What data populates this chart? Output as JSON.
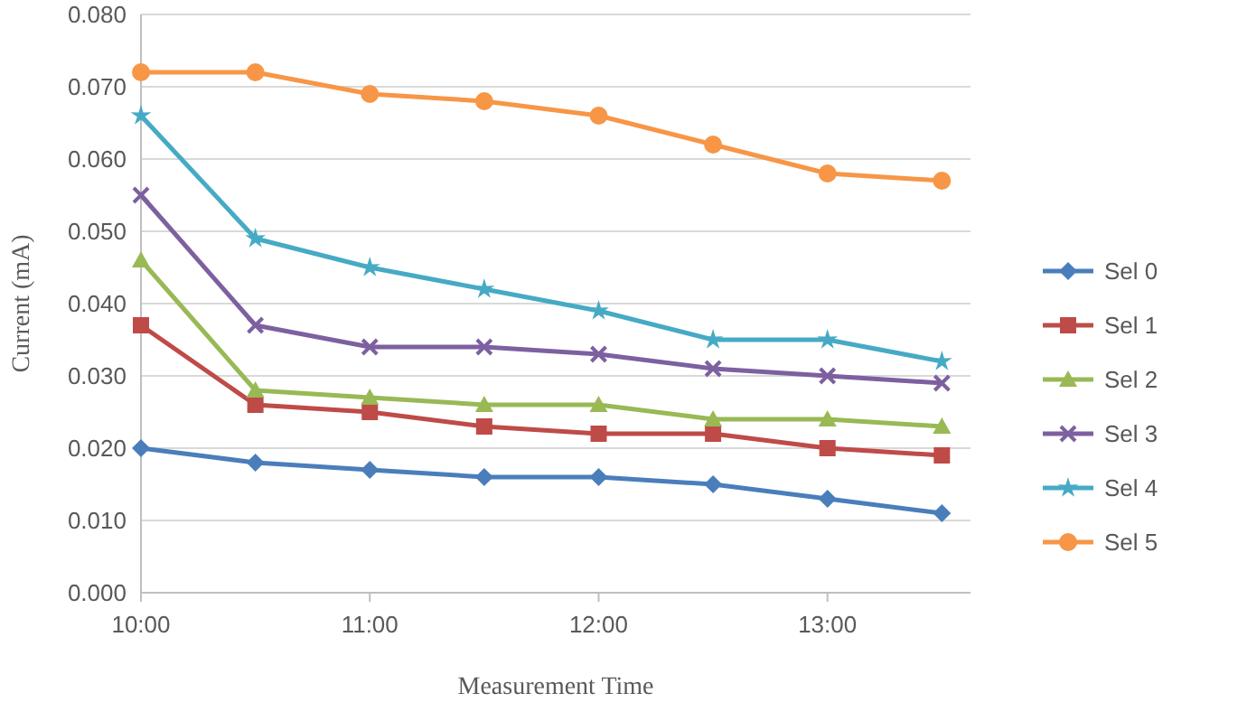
{
  "chart_data": {
    "type": "line",
    "xlabel": "Measurement Time",
    "ylabel": "Current (mA)",
    "x": [
      10,
      10.5,
      11,
      11.5,
      12,
      12.5,
      13,
      13.5
    ],
    "xlim": [
      10,
      13.625
    ],
    "xticks": [
      {
        "value": 10,
        "label": "10:00"
      },
      {
        "value": 11,
        "label": "11:00"
      },
      {
        "value": 12,
        "label": "12:00"
      },
      {
        "value": 13,
        "label": "13:00"
      }
    ],
    "ylim": [
      0,
      0.08
    ],
    "yticks": [
      {
        "value": 0,
        "label": "0.000"
      },
      {
        "value": 0.01,
        "label": "0.010"
      },
      {
        "value": 0.02,
        "label": "0.020"
      },
      {
        "value": 0.03,
        "label": "0.030"
      },
      {
        "value": 0.04,
        "label": "0.040"
      },
      {
        "value": 0.05,
        "label": "0.050"
      },
      {
        "value": 0.06,
        "label": "0.060"
      },
      {
        "value": 0.07,
        "label": "0.070"
      },
      {
        "value": 0.08,
        "label": "0.080"
      }
    ],
    "grid": "y",
    "legend": "right",
    "line_style": "solid",
    "series": [
      {
        "name": "Sel 0",
        "color": "#4a7ebb",
        "marker": "diamond",
        "values": [
          0.02,
          0.018,
          0.017,
          0.016,
          0.016,
          0.015,
          0.013,
          0.011
        ]
      },
      {
        "name": "Sel 1",
        "color": "#be4b48",
        "marker": "square",
        "values": [
          0.037,
          0.026,
          0.025,
          0.023,
          0.022,
          0.022,
          0.02,
          0.019
        ]
      },
      {
        "name": "Sel 2",
        "color": "#98b954",
        "marker": "triangle",
        "values": [
          0.046,
          0.028,
          0.027,
          0.026,
          0.026,
          0.024,
          0.024,
          0.023
        ]
      },
      {
        "name": "Sel 3",
        "color": "#7d60a0",
        "marker": "cross",
        "values": [
          0.055,
          0.037,
          0.034,
          0.034,
          0.033,
          0.031,
          0.03,
          0.029
        ]
      },
      {
        "name": "Sel 4",
        "color": "#46aac5",
        "marker": "star",
        "values": [
          0.066,
          0.049,
          0.045,
          0.042,
          0.039,
          0.035,
          0.035,
          0.032
        ]
      },
      {
        "name": "Sel 5",
        "color": "#f79646",
        "marker": "circle",
        "values": [
          0.072,
          0.072,
          0.069,
          0.068,
          0.066,
          0.062,
          0.058,
          0.057
        ]
      }
    ]
  }
}
